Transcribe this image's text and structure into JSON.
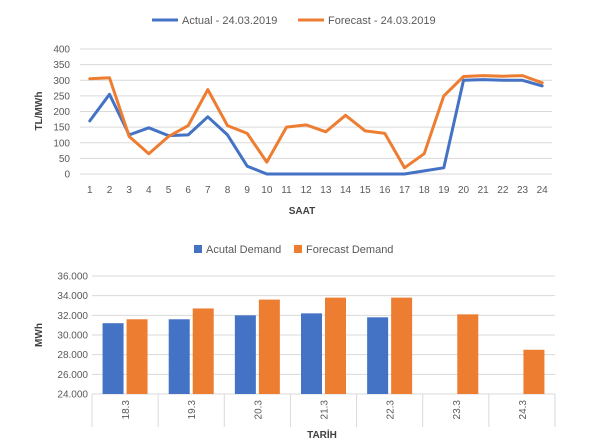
{
  "colors": {
    "actual": "#4472c4",
    "forecast": "#ed7d31",
    "grid": "#d9d9d9",
    "text": "#595959"
  },
  "chart_data": [
    {
      "type": "line",
      "legend_position": "top",
      "grid": true,
      "xlabel": "SAAT",
      "ylabel": "TL/MWh",
      "ylim": [
        0,
        400
      ],
      "yticks": [
        "0",
        "50",
        "100",
        "150",
        "200",
        "250",
        "300",
        "350",
        "400"
      ],
      "x": [
        "1",
        "2",
        "3",
        "4",
        "5",
        "6",
        "7",
        "8",
        "9",
        "10",
        "11",
        "12",
        "13",
        "14",
        "15",
        "16",
        "17",
        "18",
        "19",
        "20",
        "21",
        "22",
        "23",
        "24"
      ],
      "series": [
        {
          "name": "Actual - 24.03.2019",
          "values": [
            170,
            255,
            125,
            148,
            123,
            125,
            183,
            125,
            25,
            0,
            0,
            0,
            0,
            0,
            0,
            0,
            0,
            10,
            20,
            300,
            302,
            300,
            300,
            282
          ]
        },
        {
          "name": "Forecast - 24.03.2019",
          "values": [
            305,
            308,
            120,
            65,
            120,
            155,
            270,
            155,
            130,
            38,
            150,
            157,
            135,
            188,
            138,
            130,
            20,
            65,
            250,
            312,
            315,
            313,
            315,
            292
          ]
        }
      ]
    },
    {
      "type": "bar",
      "legend_position": "top",
      "grid": true,
      "xlabel": "TARİH",
      "ylabel": "MWh",
      "ylim": [
        24000,
        36000
      ],
      "yticks": [
        "24.000",
        "26.000",
        "28.000",
        "30.000",
        "32.000",
        "34.000",
        "36.000"
      ],
      "categories": [
        "18.3",
        "19.3",
        "20.3",
        "21.3",
        "22.3",
        "23.3",
        "24.3"
      ],
      "series": [
        {
          "name": "Acutal Demand",
          "values": [
            31200,
            31600,
            32000,
            32200,
            31800,
            null,
            null
          ]
        },
        {
          "name": "Forecast Demand",
          "values": [
            31600,
            32700,
            33600,
            33800,
            33800,
            32100,
            28500
          ]
        }
      ]
    }
  ]
}
